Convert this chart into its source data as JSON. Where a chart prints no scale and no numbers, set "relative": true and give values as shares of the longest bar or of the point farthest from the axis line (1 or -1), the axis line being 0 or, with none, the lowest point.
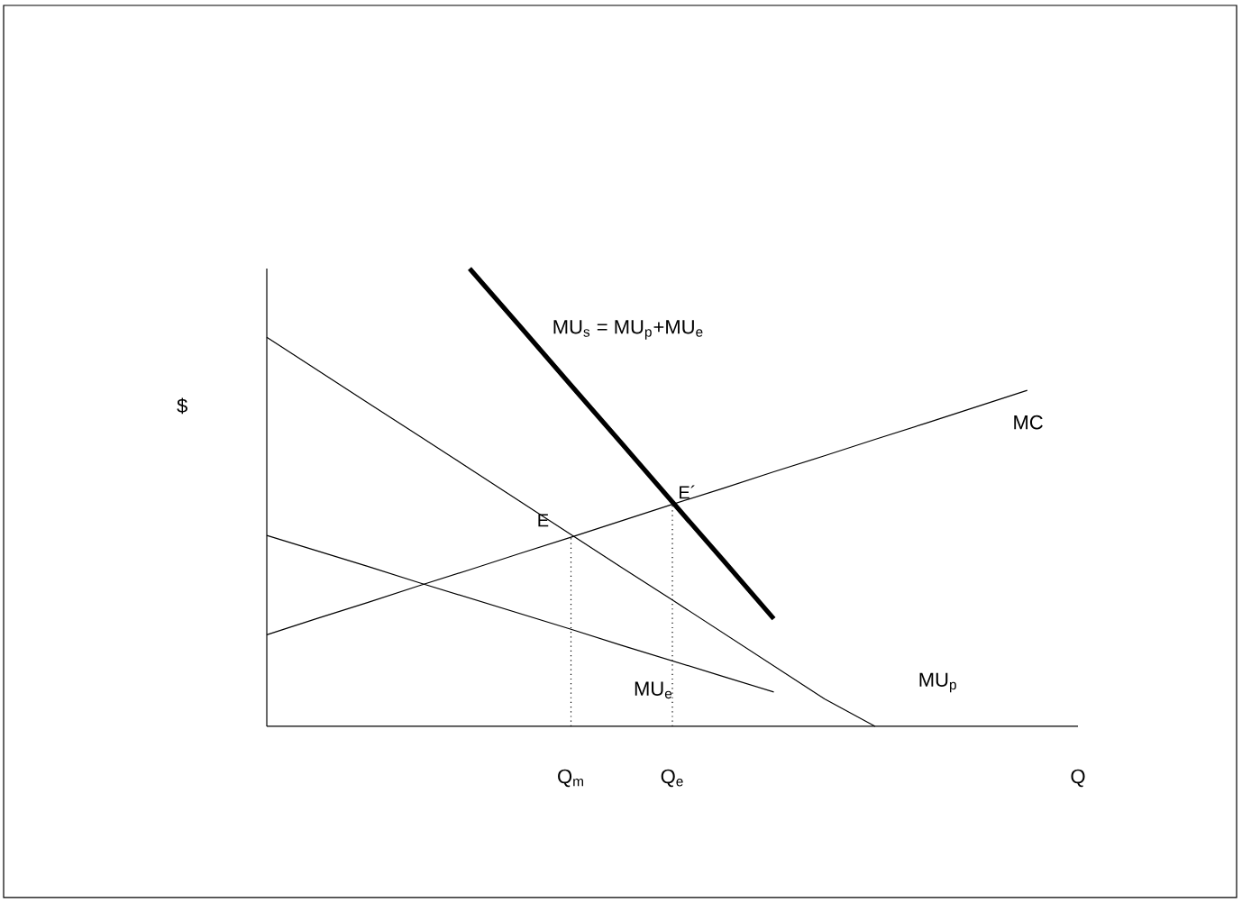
{
  "chart_data": {
    "type": "line",
    "relative": true,
    "xlabel": "Q",
    "ylabel": "$",
    "categories": [
      null,
      null,
      null,
      null,
      null,
      null,
      "Q$_{m}$",
      null,
      "Q$_{e}$",
      null,
      null,
      null,
      null,
      null,
      null,
      null,
      null
    ],
    "series": [
      {
        "name": "MC",
        "color": "#000000",
        "values": [
          0.2,
          0.236,
          0.271,
          0.307,
          0.342,
          0.378,
          0.413,
          0.449,
          0.485,
          0.52,
          0.556,
          0.591,
          0.627,
          0.662,
          0.698,
          0.734,
          null
        ]
      },
      {
        "name": "MU$_{p}$",
        "color": "#000000",
        "values": [
          0.85,
          0.778,
          0.706,
          0.635,
          0.563,
          0.491,
          0.419,
          0.347,
          0.276,
          0.204,
          0.132,
          0.06,
          0,
          null,
          null,
          null,
          null
        ]
      },
      {
        "name": "MU$_{e}$",
        "color": "#000000",
        "values": [
          0.417,
          0.383,
          0.349,
          0.314,
          0.28,
          0.246,
          0.212,
          0.177,
          0.143,
          0.109,
          0.075,
          null,
          null,
          null,
          null,
          null,
          null
        ]
      },
      {
        "name": "MU$_{s}$ = MU$_{p}$+MU$_{e}$",
        "color": "#000000",
        "values": [
          null,
          null,
          null,
          null,
          1,
          0.873,
          0.745,
          0.618,
          0.49,
          0.363,
          0.235,
          null,
          null,
          null,
          null,
          null,
          null
        ]
      },
      {
        "color": "#000000",
        "line_style": "dotted",
        "x": [
          "Q$_{m}$",
          "Q$_{m}$"
        ],
        "values": [
          0,
          0.416
        ]
      },
      {
        "color": "#000000",
        "line_style": "dotted",
        "x": [
          "Q$_{e}$",
          "Q$_{e}$"
        ],
        "values": [
          0,
          0.485
        ]
      }
    ],
    "annotations": [
      {
        "text": "E",
        "x": "Q$_{m}$",
        "y": 0.416
      },
      {
        "text": "E´",
        "x": "Q$_{e}$",
        "y": 0.485
      }
    ]
  }
}
